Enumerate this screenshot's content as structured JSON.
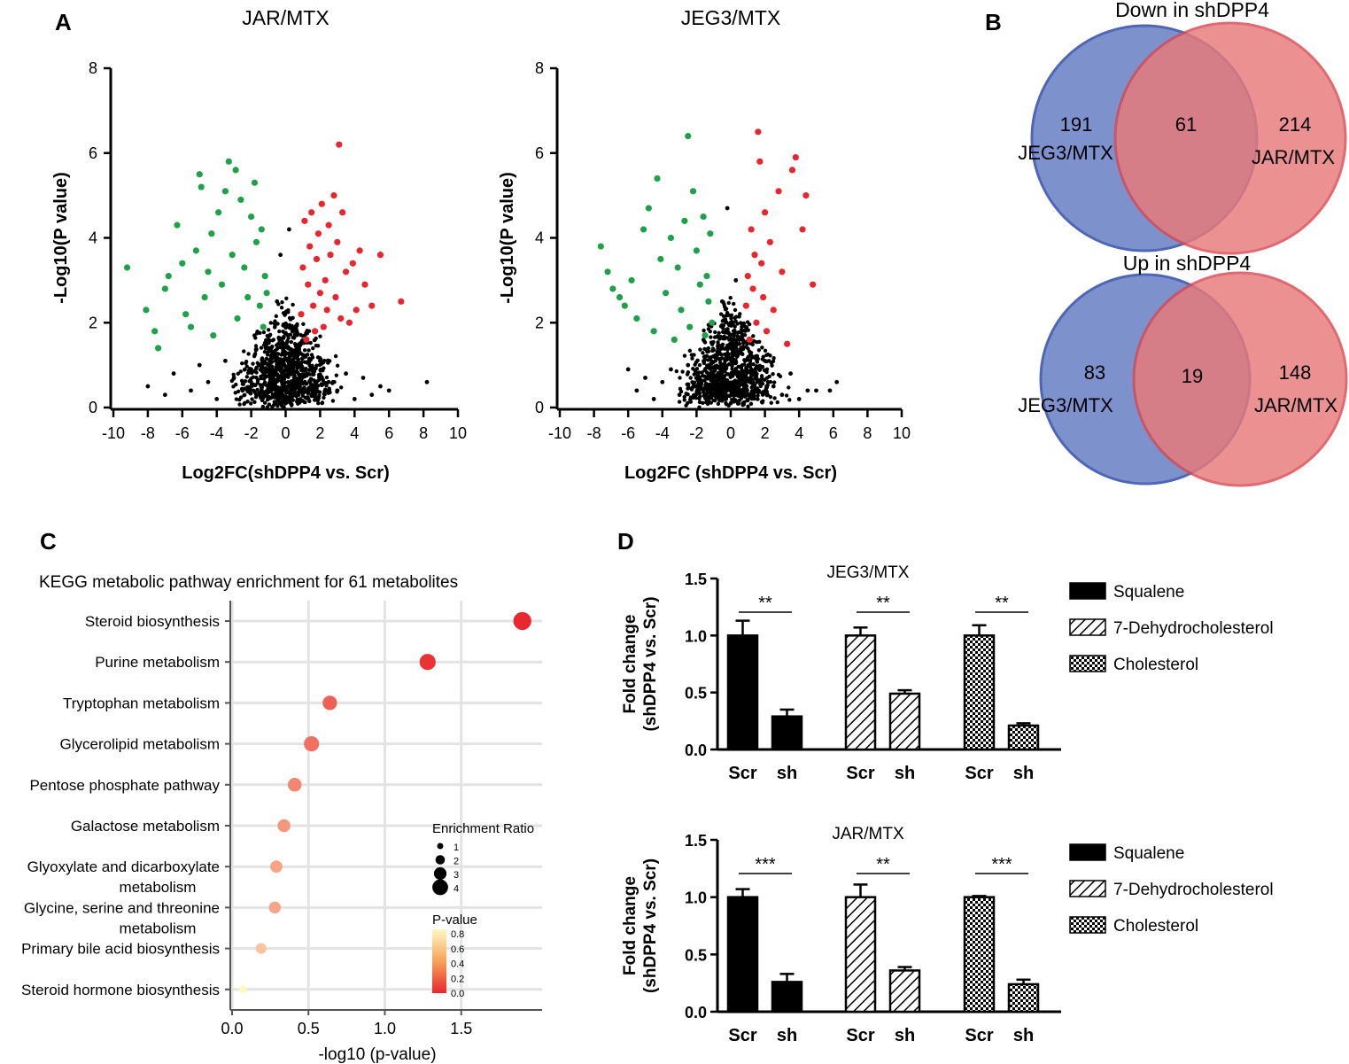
{
  "panel_labels": {
    "a": "A",
    "b": "B",
    "c": "C",
    "d": "D"
  },
  "colors": {
    "down": "#1fa14a",
    "up": "#e8262d",
    "ns": "#000000",
    "venn_left": "#6f86c8",
    "venn_right": "#e97a7a",
    "venn_overlap": "#a95a79"
  },
  "chart_data": [
    {
      "id": "volcano_jar",
      "type": "scatter",
      "title": "JAR/MTX",
      "xlabel": "Log2FC(shDPP4 vs. Scr)",
      "ylabel": "-Log10(P value)",
      "xlim": [
        -10,
        10
      ],
      "ylim": [
        0,
        8
      ],
      "xticks": [
        "-10",
        "-8",
        "-6",
        "-4",
        "-2",
        "0",
        "2",
        "4",
        "6",
        "8",
        "10"
      ],
      "yticks": [
        "0",
        "2",
        "4",
        "6",
        "8"
      ],
      "series": [
        {
          "name": "down",
          "color": "#1fa14a",
          "points": [
            [
              -9.2,
              3.3
            ],
            [
              -8.1,
              2.3
            ],
            [
              -7.6,
              1.8
            ],
            [
              -7.4,
              1.4
            ],
            [
              -7,
              2.8
            ],
            [
              -6.8,
              3.1
            ],
            [
              -6.3,
              4.3
            ],
            [
              -6,
              3.4
            ],
            [
              -5.8,
              2.2
            ],
            [
              -5.5,
              1.9
            ],
            [
              -5.2,
              3.7
            ],
            [
              -5,
              5.5
            ],
            [
              -4.9,
              5.2
            ],
            [
              -4.7,
              2.6
            ],
            [
              -4.5,
              3.2
            ],
            [
              -4.3,
              4.1
            ],
            [
              -4.2,
              1.7
            ],
            [
              -3.9,
              4.6
            ],
            [
              -3.7,
              2.9
            ],
            [
              -3.5,
              5.1
            ],
            [
              -3.3,
              5.8
            ],
            [
              -3.1,
              3.6
            ],
            [
              -2.9,
              5.6
            ],
            [
              -2.8,
              2.1
            ],
            [
              -2.6,
              4.9
            ],
            [
              -2.4,
              3.3
            ],
            [
              -2.2,
              2.6
            ],
            [
              -2,
              4.5
            ],
            [
              -1.8,
              5.3
            ],
            [
              -1.7,
              3.9
            ],
            [
              -1.5,
              2.4
            ],
            [
              -1.4,
              4.2
            ],
            [
              -1.3,
              1.9
            ],
            [
              -1.2,
              3.1
            ],
            [
              -1.1,
              2.7
            ]
          ]
        },
        {
          "name": "up",
          "color": "#e8262d",
          "points": [
            [
              0.9,
              2.2
            ],
            [
              1.0,
              3.3
            ],
            [
              1.1,
              4.4
            ],
            [
              1.2,
              1.6
            ],
            [
              1.3,
              2.9
            ],
            [
              1.4,
              3.8
            ],
            [
              1.5,
              4.6
            ],
            [
              1.6,
              2.4
            ],
            [
              1.7,
              1.8
            ],
            [
              1.8,
              3.5
            ],
            [
              1.9,
              4.1
            ],
            [
              2.0,
              2.7
            ],
            [
              2.1,
              4.8
            ],
            [
              2.2,
              1.9
            ],
            [
              2.3,
              3.0
            ],
            [
              2.4,
              2.3
            ],
            [
              2.5,
              4.3
            ],
            [
              2.6,
              3.6
            ],
            [
              2.8,
              5.0
            ],
            [
              2.9,
              2.6
            ],
            [
              3.0,
              3.9
            ],
            [
              3.1,
              6.2
            ],
            [
              3.2,
              2.1
            ],
            [
              3.3,
              4.6
            ],
            [
              3.5,
              3.2
            ],
            [
              3.7,
              2.0
            ],
            [
              3.9,
              3.4
            ],
            [
              4.1,
              2.3
            ],
            [
              4.3,
              3.7
            ],
            [
              4.6,
              2.9
            ],
            [
              5,
              2.4
            ],
            [
              5.5,
              3.6
            ],
            [
              6.7,
              2.5
            ]
          ]
        },
        {
          "name": "not significant",
          "color": "#000000",
          "points": [
            [
              -8,
              0.5
            ],
            [
              -7,
              0.3
            ],
            [
              -6.5,
              0.8
            ],
            [
              -5.5,
              0.4
            ],
            [
              -5,
              1.0
            ],
            [
              -4.5,
              0.6
            ],
            [
              -4,
              0.2
            ],
            [
              -3.5,
              1.1
            ],
            [
              -3,
              0.7
            ],
            [
              -2.5,
              0.4
            ],
            [
              -2,
              0.9
            ],
            [
              -1.5,
              0.3
            ],
            [
              -1,
              1.4
            ],
            [
              -0.5,
              2.5
            ],
            [
              -0.3,
              3.6
            ],
            [
              0,
              0.1
            ],
            [
              0.2,
              4.2
            ],
            [
              0.4,
              1.8
            ],
            [
              0.6,
              0.5
            ],
            [
              1,
              0.9
            ],
            [
              1.5,
              0.3
            ],
            [
              2,
              1.1
            ],
            [
              2.5,
              0.6
            ],
            [
              3,
              0.4
            ],
            [
              3.5,
              0.8
            ],
            [
              4,
              0.2
            ],
            [
              4.5,
              0.7
            ],
            [
              5,
              0.3
            ],
            [
              5.5,
              0.5
            ],
            [
              6,
              0.4
            ],
            [
              8.2,
              0.6
            ]
          ]
        }
      ]
    },
    {
      "id": "volcano_jeg3",
      "type": "scatter",
      "title": "JEG3/MTX",
      "xlabel": "Log2FC (shDPP4 vs. Scr)",
      "ylabel": "-Log10(P value)",
      "xlim": [
        -10,
        10
      ],
      "ylim": [
        0,
        8
      ],
      "xticks": [
        "-10",
        "-8",
        "-6",
        "-4",
        "-2",
        "0",
        "2",
        "4",
        "6",
        "8",
        "10"
      ],
      "yticks": [
        "0",
        "2",
        "4",
        "6",
        "8"
      ],
      "series": [
        {
          "name": "down",
          "color": "#1fa14a",
          "points": [
            [
              -7.6,
              3.8
            ],
            [
              -7.2,
              3.2
            ],
            [
              -6.9,
              2.8
            ],
            [
              -6.5,
              2.6
            ],
            [
              -6.2,
              2.4
            ],
            [
              -5.8,
              3.0
            ],
            [
              -5.5,
              2.1
            ],
            [
              -5.1,
              4.2
            ],
            [
              -4.8,
              4.7
            ],
            [
              -4.5,
              1.8
            ],
            [
              -4.3,
              5.4
            ],
            [
              -4.1,
              3.5
            ],
            [
              -3.8,
              2.7
            ],
            [
              -3.5,
              4.0
            ],
            [
              -3.3,
              1.6
            ],
            [
              -3.1,
              3.3
            ],
            [
              -2.9,
              2.3
            ],
            [
              -2.7,
              4.4
            ],
            [
              -2.5,
              6.4
            ],
            [
              -2.4,
              1.9
            ],
            [
              -2.2,
              5.1
            ],
            [
              -2.0,
              3.7
            ],
            [
              -1.8,
              2.9
            ],
            [
              -1.6,
              4.5
            ],
            [
              -1.5,
              1.7
            ],
            [
              -1.4,
              3.1
            ],
            [
              -1.3,
              2.5
            ],
            [
              -1.2,
              4.1
            ],
            [
              -1.1,
              2.0
            ]
          ]
        },
        {
          "name": "up",
          "color": "#e8262d",
          "points": [
            [
              0.9,
              2.4
            ],
            [
              1.0,
              3.1
            ],
            [
              1.1,
              1.6
            ],
            [
              1.2,
              4.2
            ],
            [
              1.3,
              2.8
            ],
            [
              1.4,
              3.6
            ],
            [
              1.5,
              2.0
            ],
            [
              1.6,
              6.5
            ],
            [
              1.7,
              5.8
            ],
            [
              1.8,
              3.4
            ],
            [
              1.9,
              2.6
            ],
            [
              2.0,
              4.6
            ],
            [
              2.1,
              1.8
            ],
            [
              2.3,
              3.9
            ],
            [
              2.5,
              2.3
            ],
            [
              2.8,
              5.1
            ],
            [
              3.0,
              3.2
            ],
            [
              3.3,
              1.5
            ],
            [
              3.6,
              5.6
            ],
            [
              3.8,
              5.9
            ],
            [
              4.2,
              4.2
            ],
            [
              4.4,
              5.0
            ],
            [
              4.8,
              2.9
            ]
          ]
        },
        {
          "name": "not significant",
          "color": "#000000",
          "points": [
            [
              -6,
              0.9
            ],
            [
              -5.5,
              0.4
            ],
            [
              -5,
              0.7
            ],
            [
              -4.5,
              0.2
            ],
            [
              -4,
              0.6
            ],
            [
              -3.5,
              0.9
            ],
            [
              -3,
              0.3
            ],
            [
              -2.5,
              1.0
            ],
            [
              -2,
              0.5
            ],
            [
              -1.5,
              1.2
            ],
            [
              -1,
              0.7
            ],
            [
              -0.5,
              2.5
            ],
            [
              -0.2,
              4.7
            ],
            [
              0,
              0.1
            ],
            [
              0.3,
              3.0
            ],
            [
              0.5,
              1.5
            ],
            [
              0.8,
              0.6
            ],
            [
              1.2,
              0.9
            ],
            [
              1.6,
              0.4
            ],
            [
              2,
              1.1
            ],
            [
              2.5,
              0.5
            ],
            [
              3,
              0.3
            ],
            [
              3.5,
              0.8
            ],
            [
              4,
              0.2
            ],
            [
              4.5,
              0.4
            ],
            [
              5,
              0.4
            ],
            [
              5.8,
              0.4
            ],
            [
              6.2,
              0.6
            ]
          ]
        }
      ]
    },
    {
      "id": "kegg_dotplot",
      "type": "scatter",
      "title": "KEGG metabolic pathway enrichment  for 61 metabolites",
      "xlabel": "-log10 (p-value)",
      "ylabel": "",
      "xlim": [
        0,
        2
      ],
      "xticks": [
        "0.0",
        "0.5",
        "1.0",
        "1.5"
      ],
      "categories": [
        [
          "Steroid biosynthesis"
        ],
        [
          "Purine metabolism"
        ],
        [
          "Tryptophan metabolism"
        ],
        [
          "Glycerolipid metabolism"
        ],
        [
          "Pentose phosphate pathway"
        ],
        [
          "Galactose metabolism"
        ],
        [
          "Glyoxylate and dicarboxylate",
          "metabolism"
        ],
        [
          "Glycine, serine and threonine",
          "metabolism"
        ],
        [
          "Primary bile acid biosynthesis"
        ],
        [
          "Steroid hormone biosynthesis"
        ]
      ],
      "x": [
        1.9,
        1.28,
        0.64,
        0.52,
        0.41,
        0.34,
        0.29,
        0.28,
        0.19,
        0.07
      ],
      "enrichment_ratio": [
        4.2,
        3.6,
        3.0,
        3.3,
        2.8,
        2.5,
        2.3,
        2.2,
        1.8,
        0.9
      ],
      "p_value": [
        0.01,
        0.05,
        0.23,
        0.3,
        0.39,
        0.46,
        0.51,
        0.52,
        0.64,
        0.85
      ],
      "size_legend": {
        "title": "Enrichment Ratio",
        "values": [
          "1",
          "2",
          "3",
          "4"
        ]
      },
      "color_legend": {
        "title": "P-value",
        "ticks": [
          "0.8",
          "0.6",
          "0.4",
          "0.2",
          "0.0"
        ],
        "low_color": "#e8262d",
        "high_color": "#fff8c0"
      }
    },
    {
      "id": "bar_jeg3",
      "type": "bar",
      "title": "JEG3/MTX",
      "ylabel": [
        "Fold change",
        "(shDPP4 vs. Scr)"
      ],
      "ylim": [
        0,
        1.5
      ],
      "yticks": [
        "0.0",
        "0.5",
        "1.0",
        "1.5"
      ],
      "groups": [
        "Squalene",
        "7-Dehydrocholesterol",
        "Cholesterol"
      ],
      "categories": [
        "Scr",
        "sh"
      ],
      "values": [
        [
          1.0,
          0.29
        ],
        [
          1.0,
          0.49
        ],
        [
          1.0,
          0.21
        ]
      ],
      "errors": [
        [
          0.13,
          0.06
        ],
        [
          0.07,
          0.03
        ],
        [
          0.09,
          0.02
        ]
      ],
      "significance": [
        "**",
        "**",
        "**"
      ]
    },
    {
      "id": "bar_jar",
      "type": "bar",
      "title": "JAR/MTX",
      "ylabel": [
        "Fold change",
        "(shDPP4 vs. Scr)"
      ],
      "ylim": [
        0,
        1.5
      ],
      "yticks": [
        "0.0",
        "0.5",
        "1.0",
        "1.5"
      ],
      "groups": [
        "Squalene",
        "7-Dehydrocholesterol",
        "Cholesterol"
      ],
      "categories": [
        "Scr",
        "sh"
      ],
      "values": [
        [
          1.0,
          0.26
        ],
        [
          1.0,
          0.36
        ],
        [
          1.0,
          0.24
        ]
      ],
      "errors": [
        [
          0.07,
          0.07
        ],
        [
          0.11,
          0.03
        ],
        [
          0.01,
          0.04
        ]
      ],
      "significance": [
        "***",
        "**",
        "***"
      ]
    }
  ],
  "venn": [
    {
      "title": "Down in shDPP4",
      "left_count": "191",
      "overlap_count": "61",
      "right_count": "214",
      "left_label": "JEG3/MTX",
      "right_label": "JAR/MTX"
    },
    {
      "title": "Up in shDPP4",
      "left_count": "83",
      "overlap_count": "19",
      "right_count": "148",
      "left_label": "JEG3/MTX",
      "right_label": "JAR/MTX"
    }
  ]
}
